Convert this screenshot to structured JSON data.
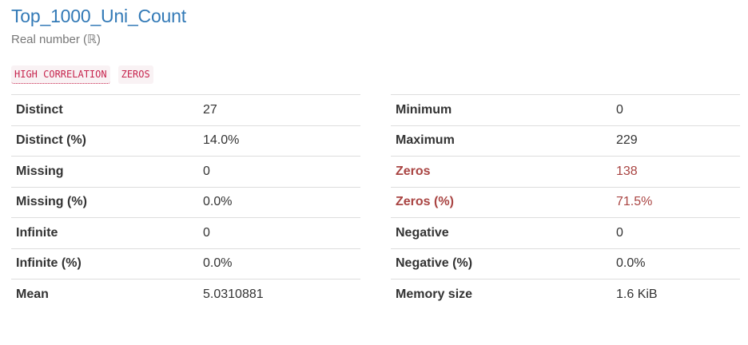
{
  "variable": {
    "name": "Top_1000_Uni_Count",
    "type_label": "Real number (ℝ)"
  },
  "badges": [
    {
      "label": "HIGH CORRELATION"
    },
    {
      "label": "ZEROS"
    }
  ],
  "left_table": [
    {
      "key": "Distinct",
      "value": "27"
    },
    {
      "key": "Distinct (%)",
      "value": "14.0%"
    },
    {
      "key": "Missing",
      "value": "0"
    },
    {
      "key": "Missing (%)",
      "value": "0.0%"
    },
    {
      "key": "Infinite",
      "value": "0"
    },
    {
      "key": "Infinite (%)",
      "value": "0.0%"
    },
    {
      "key": "Mean",
      "value": "5.0310881"
    }
  ],
  "right_table": [
    {
      "key": "Minimum",
      "value": "0"
    },
    {
      "key": "Maximum",
      "value": "229"
    },
    {
      "key": "Zeros",
      "value": "138",
      "alert": true
    },
    {
      "key": "Zeros (%)",
      "value": "71.5%",
      "alert": true
    },
    {
      "key": "Negative",
      "value": "0"
    },
    {
      "key": "Negative (%)",
      "value": "0.0%"
    },
    {
      "key": "Memory size",
      "value": "1.6 KiB"
    }
  ],
  "colors": {
    "title": "#337ab7",
    "badge_text": "#c7254e",
    "badge_bg": "#f9f2f4",
    "alert": "#a94442"
  }
}
